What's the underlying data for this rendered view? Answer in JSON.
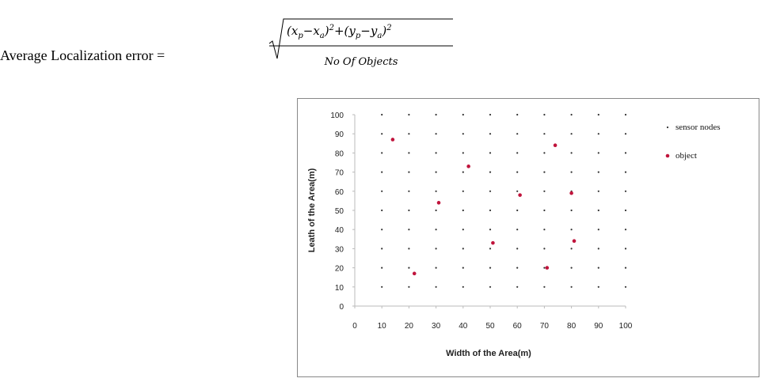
{
  "equation": {
    "lhs": "Average Localization error =",
    "numerator": [
      "(",
      "x",
      "p",
      "−",
      "x",
      "a",
      ")",
      "2",
      "+(",
      "y",
      "p",
      "−",
      "y",
      "a",
      ")",
      "2"
    ],
    "denominator": "No Of Objects"
  },
  "chart_data": {
    "type": "scatter",
    "x_label": "Width of the Area(m)",
    "y_label": "Leath of the Area(m)",
    "xlim": [
      0,
      100
    ],
    "ylim": [
      0,
      100
    ],
    "xticks": [
      0,
      10,
      20,
      30,
      40,
      50,
      60,
      70,
      80,
      90,
      100
    ],
    "yticks": [
      0,
      10,
      20,
      30,
      40,
      50,
      60,
      70,
      80,
      90,
      100
    ],
    "grid": false,
    "legend": "right",
    "series": [
      {
        "name": "sensor nodes",
        "color": "#333333",
        "x": [
          10,
          20,
          30,
          40,
          50,
          60,
          70,
          80,
          90,
          100,
          10,
          20,
          30,
          40,
          50,
          60,
          70,
          80,
          90,
          100,
          10,
          20,
          30,
          40,
          50,
          60,
          70,
          80,
          90,
          100,
          10,
          20,
          30,
          40,
          50,
          60,
          70,
          80,
          90,
          100,
          10,
          20,
          30,
          40,
          50,
          60,
          70,
          80,
          90,
          100,
          10,
          20,
          30,
          40,
          50,
          60,
          70,
          80,
          90,
          100,
          10,
          20,
          30,
          40,
          50,
          60,
          70,
          80,
          90,
          100,
          10,
          20,
          30,
          40,
          50,
          60,
          70,
          80,
          90,
          100,
          10,
          20,
          30,
          40,
          50,
          60,
          70,
          80,
          90,
          100,
          10,
          20,
          30,
          40,
          50,
          60,
          70,
          80,
          90,
          100
        ],
        "y": [
          10,
          10,
          10,
          10,
          10,
          10,
          10,
          10,
          10,
          10,
          20,
          20,
          20,
          20,
          20,
          20,
          20,
          20,
          20,
          20,
          30,
          30,
          30,
          30,
          30,
          30,
          30,
          30,
          30,
          30,
          40,
          40,
          40,
          40,
          40,
          40,
          40,
          40,
          40,
          40,
          50,
          50,
          50,
          50,
          50,
          50,
          50,
          50,
          50,
          50,
          60,
          60,
          60,
          60,
          60,
          60,
          60,
          60,
          60,
          60,
          70,
          70,
          70,
          70,
          70,
          70,
          70,
          70,
          70,
          70,
          80,
          80,
          80,
          80,
          80,
          80,
          80,
          80,
          80,
          80,
          90,
          90,
          90,
          90,
          90,
          90,
          90,
          90,
          90,
          90,
          100,
          100,
          100,
          100,
          100,
          100,
          100,
          100,
          100,
          100
        ]
      },
      {
        "name": "object",
        "color": "#c0143c",
        "x": [
          14,
          42,
          31,
          61,
          80,
          74,
          51,
          81,
          71,
          22
        ],
        "y": [
          87,
          73,
          54,
          58,
          59,
          84,
          33,
          34,
          20,
          17
        ]
      }
    ]
  }
}
